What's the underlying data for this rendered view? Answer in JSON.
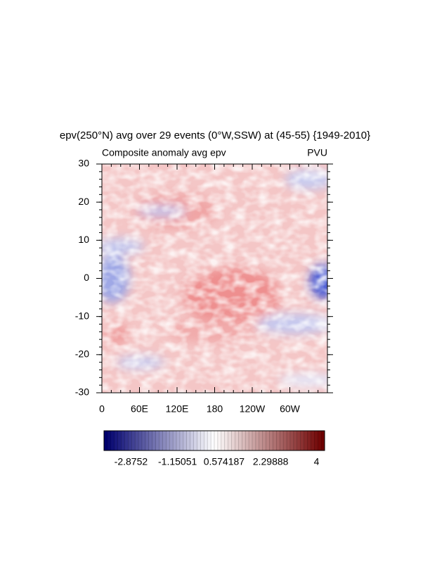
{
  "chart_data": {
    "type": "heatmap",
    "title": "epv(250°N) avg over 29 events (0°W,SSW) at (45-55) {1949-2010}",
    "left_label": "Composite anomaly avg epv",
    "right_label": "PVU",
    "xlim": [
      0,
      360
    ],
    "xticks": [
      0,
      {
        "value": 60,
        "label": "60E"
      },
      {
        "value": 120,
        "label": "120E"
      },
      180,
      {
        "value": 240,
        "label": "120W"
      },
      {
        "value": 300,
        "label": "60W"
      }
    ],
    "ylim": [
      -30,
      30
    ],
    "yticks": [
      -30,
      -20,
      -10,
      0,
      10,
      20,
      30
    ],
    "colorbar_lim": [
      -3.875,
      4.3
    ],
    "colorbar_ticks": [
      -2.8752,
      -1.15051,
      0.574187,
      2.29888,
      4
    ]
  }
}
